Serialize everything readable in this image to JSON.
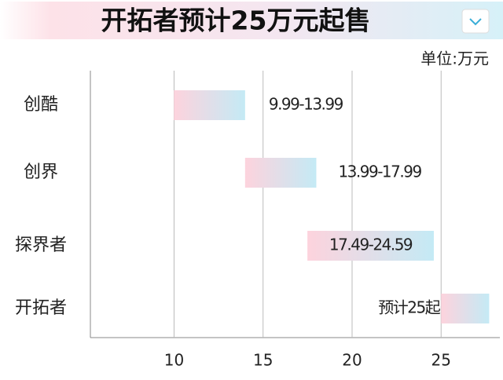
{
  "chart_data": {
    "type": "range-bar",
    "title": "开拓者预计25万元起售",
    "unit_label": "单位:万元",
    "categories": [
      "创酷",
      "创界",
      "探界者",
      "开拓者"
    ],
    "low": [
      9.99,
      13.99,
      17.49,
      25
    ],
    "high": [
      13.99,
      17.99,
      24.59,
      27.7
    ],
    "value_labels": [
      "9.99-13.99",
      "13.99-17.99",
      "17.49-24.59",
      "预计25起"
    ],
    "colors": [
      "#fdd3dd",
      "#c4eaf5"
    ],
    "xlim": [
      5.3,
      28.3
    ],
    "xticks": [
      10,
      15,
      20,
      25
    ],
    "grid": true
  }
}
